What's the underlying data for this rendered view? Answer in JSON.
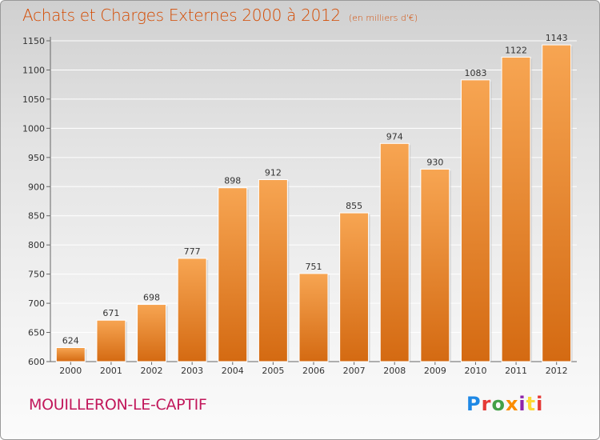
{
  "header": {
    "title": "Achats et Charges Externes 2000 à 2012",
    "unit": "(en milliers d'€)"
  },
  "footer": {
    "commune": "MOUILLERON-LE-CAPTIF",
    "logo": "Proxiti",
    "logo_colors": [
      "#1e88e5",
      "#e53935",
      "#43a047",
      "#fb8c00",
      "#8e24aa",
      "#fdd835",
      "#e53935"
    ]
  },
  "colors": {
    "accent": "#d44a00",
    "commune": "#c2185b",
    "bar_top": "#f7a552",
    "bar_bottom": "#d46a12"
  },
  "chart_data": {
    "type": "bar",
    "title": "Achats et Charges Externes 2000 à 2012",
    "xlabel": "",
    "ylabel": "",
    "categories": [
      "2000",
      "2001",
      "2002",
      "2003",
      "2004",
      "2005",
      "2006",
      "2007",
      "2008",
      "2009",
      "2010",
      "2011",
      "2012"
    ],
    "values": [
      624,
      671,
      698,
      777,
      898,
      912,
      751,
      855,
      974,
      930,
      1083,
      1122,
      1143
    ],
    "ylim": [
      600,
      1150
    ],
    "yticks": [
      600,
      650,
      700,
      750,
      800,
      850,
      900,
      950,
      1000,
      1050,
      1100,
      1150
    ],
    "grid": true,
    "legend": "none"
  }
}
